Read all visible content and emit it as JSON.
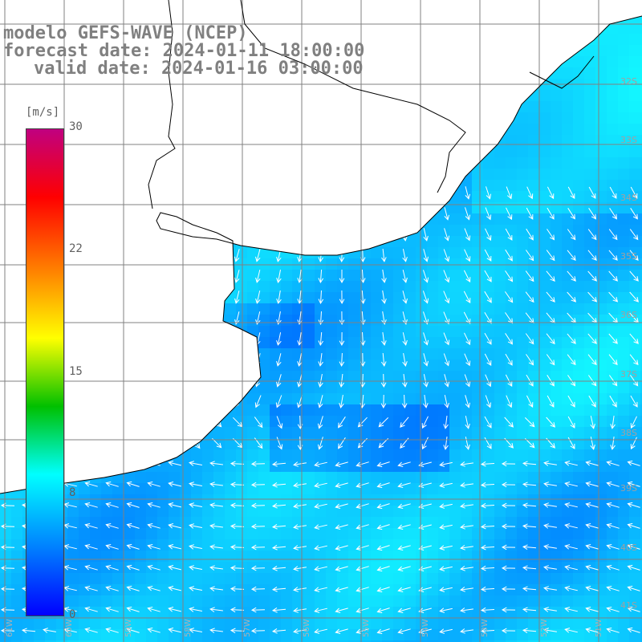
{
  "title": {
    "model": "modelo GEFS-WAVE (NCEP)",
    "forecast": "forecast date: 2024-01-11 18:00:00",
    "valid": "valid date: 2024-01-16 03:00:00"
  },
  "colorbar": {
    "unit": "[m/s]",
    "ticks": [
      "30",
      "22",
      "15",
      "8",
      "0"
    ],
    "colors": [
      "#c00080",
      "#ff0000",
      "#ff8000",
      "#ffff00",
      "#00c000",
      "#00ffff",
      "#0080ff",
      "#0000ff"
    ]
  },
  "map": {
    "land_color": "#ffffff",
    "grid_color": "#808080",
    "coast_color": "#000000",
    "arrow_color": "#ffffff",
    "lat_labels": [
      "32S",
      "33S",
      "34S",
      "35S",
      "36S",
      "37S",
      "38S",
      "39S",
      "40S",
      "41S"
    ],
    "lon_labels": [
      "61W",
      "60W",
      "59W",
      "58W",
      "57W",
      "56W",
      "55W",
      "54W",
      "53W",
      "52W",
      "51W"
    ]
  }
}
